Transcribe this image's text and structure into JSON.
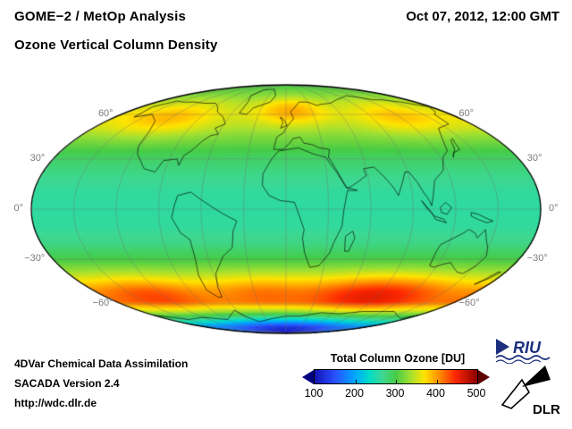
{
  "header": {
    "title_line1": "GOME−2 / MetOp Analysis",
    "title_line2": "Ozone Vertical Column Density",
    "datetime": "Oct 07, 2012, 12:00 GMT"
  },
  "footer": {
    "line1": "4DVar Chemical Data Assimilation",
    "line2": "SACADA Version 2.4",
    "line3": "http://wdc.dlr.de"
  },
  "map": {
    "lat_labels": [
      {
        "lat": 60,
        "label": "60°"
      },
      {
        "lat": 30,
        "label": "30°"
      },
      {
        "lat": 0,
        "label": "0°"
      },
      {
        "lat": -30,
        "label": "−30°"
      },
      {
        "lat": -60,
        "label": "−60°"
      }
    ]
  },
  "colorbar": {
    "title": "Total Column Ozone [DU]",
    "min": 100,
    "max": 500,
    "ticks": [
      {
        "value": 100,
        "label": "100"
      },
      {
        "value": 200,
        "label": "200"
      },
      {
        "value": 300,
        "label": "300"
      },
      {
        "value": 400,
        "label": "400"
      },
      {
        "value": 500,
        "label": "500"
      }
    ],
    "left_arrow_color": "#000080",
    "right_arrow_color": "#5f0000"
  },
  "logos": {
    "riu_text": "RIU",
    "riu_color": "#1b2f7d",
    "dlr_text": "DLR",
    "dlr_color": "#000000"
  },
  "chart_data": {
    "type": "heatmap",
    "title": "GOME−2 / MetOp Analysis — Ozone Vertical Column Density",
    "timestamp": "Oct 07, 2012, 12:00 GMT",
    "units": "DU",
    "projection": "mollweide",
    "value_range": [
      100,
      500
    ],
    "graticule_deg": 30,
    "colorbar": {
      "stops": [
        {
          "value": 100,
          "color": "#1414b4"
        },
        {
          "value": 150,
          "color": "#2850ff"
        },
        {
          "value": 200,
          "color": "#00a8ff"
        },
        {
          "value": 235,
          "color": "#00ddc8"
        },
        {
          "value": 265,
          "color": "#3cd894"
        },
        {
          "value": 300,
          "color": "#46cc46"
        },
        {
          "value": 335,
          "color": "#a0e032"
        },
        {
          "value": 370,
          "color": "#ffe400"
        },
        {
          "value": 405,
          "color": "#ff9000"
        },
        {
          "value": 445,
          "color": "#ff2800"
        },
        {
          "value": 500,
          "color": "#8c0000"
        }
      ]
    },
    "zonal_profile": {
      "lats": [
        -90,
        -80,
        -72,
        -65,
        -58,
        -50,
        -40,
        -30,
        -20,
        -10,
        0,
        10,
        20,
        30,
        40,
        50,
        60,
        70,
        80,
        90
      ],
      "values": [
        170,
        200,
        280,
        350,
        400,
        380,
        340,
        300,
        272,
        260,
        258,
        260,
        268,
        285,
        310,
        330,
        340,
        335,
        315,
        300
      ]
    },
    "anomalies": [
      {
        "name": "antarctic-ozone-hole",
        "lat": -82,
        "lon": 0,
        "amplitude": -75,
        "sigma_lat": 10,
        "sigma_lon": 85
      },
      {
        "name": "south-indian-ocean-high",
        "lat": -52,
        "lon": 85,
        "amplitude": 70,
        "sigma_lat": 9,
        "sigma_lon": 45
      },
      {
        "name": "south-pacific-high",
        "lat": -52,
        "lon": -130,
        "amplitude": 45,
        "sigma_lat": 8,
        "sigma_lon": 35
      },
      {
        "name": "south-atlantic-high",
        "lat": -50,
        "lon": -25,
        "amplitude": 30,
        "sigma_lat": 8,
        "sigma_lon": 30
      },
      {
        "name": "north-europe-high",
        "lat": 63,
        "lon": 5,
        "amplitude": 55,
        "sigma_lat": 8,
        "sigma_lon": 30
      },
      {
        "name": "east-siberia-high",
        "lat": 58,
        "lon": 118,
        "amplitude": 45,
        "sigma_lat": 9,
        "sigma_lon": 35
      },
      {
        "name": "north-pacific-america-high",
        "lat": 57,
        "lon": -125,
        "amplitude": 50,
        "sigma_lat": 9,
        "sigma_lon": 40
      }
    ],
    "coastlines": [
      [
        [
          -166,
          66
        ],
        [
          -160,
          58
        ],
        [
          -146,
          60
        ],
        [
          -131,
          55
        ],
        [
          -124,
          48
        ],
        [
          -121,
          38
        ],
        [
          -117,
          33
        ],
        [
          -106,
          24
        ],
        [
          -97,
          22
        ],
        [
          -94,
          29
        ],
        [
          -84,
          30
        ],
        [
          -81,
          26
        ],
        [
          -80,
          32
        ],
        [
          -76,
          35
        ],
        [
          -70,
          42
        ],
        [
          -66,
          45
        ],
        [
          -60,
          46
        ],
        [
          -66,
          50
        ],
        [
          -59,
          53
        ],
        [
          -66,
          58
        ],
        [
          -78,
          62
        ],
        [
          -85,
          66
        ],
        [
          -95,
          69
        ],
        [
          -110,
          69
        ],
        [
          -128,
          70
        ],
        [
          -145,
          70
        ],
        [
          -156,
          71
        ],
        [
          -166,
          66
        ]
      ],
      [
        [
          -52,
          61
        ],
        [
          -43,
          60
        ],
        [
          -40,
          65
        ],
        [
          -22,
          70
        ],
        [
          -18,
          76
        ],
        [
          -32,
          83
        ],
        [
          -55,
          82
        ],
        [
          -61,
          76
        ],
        [
          -53,
          70
        ],
        [
          -52,
          61
        ]
      ],
      [
        [
          -77,
          8
        ],
        [
          -79,
          2
        ],
        [
          -81,
          -5
        ],
        [
          -76,
          -14
        ],
        [
          -70,
          -18
        ],
        [
          -70,
          -30
        ],
        [
          -73,
          -40
        ],
        [
          -74,
          -50
        ],
        [
          -68,
          -55
        ],
        [
          -64,
          -55
        ],
        [
          -62,
          -48
        ],
        [
          -58,
          -39
        ],
        [
          -48,
          -28
        ],
        [
          -40,
          -23
        ],
        [
          -38,
          -13
        ],
        [
          -35,
          -7
        ],
        [
          -44,
          -3
        ],
        [
          -50,
          0
        ],
        [
          -61,
          6
        ],
        [
          -68,
          10
        ],
        [
          -77,
          8
        ]
      ],
      [
        [
          -6,
          35
        ],
        [
          -11,
          30
        ],
        [
          -17,
          21
        ],
        [
          -17,
          14
        ],
        [
          -12,
          8
        ],
        [
          -4,
          5
        ],
        [
          6,
          4
        ],
        [
          9,
          -3
        ],
        [
          13,
          -12
        ],
        [
          12,
          -17
        ],
        [
          14,
          -26
        ],
        [
          19,
          -35
        ],
        [
          26,
          -34
        ],
        [
          33,
          -26
        ],
        [
          35,
          -20
        ],
        [
          40,
          -10
        ],
        [
          41,
          0
        ],
        [
          44,
          11
        ],
        [
          51,
          11
        ],
        [
          43,
          13
        ],
        [
          38,
          21
        ],
        [
          33,
          28
        ],
        [
          31,
          31
        ],
        [
          22,
          33
        ],
        [
          10,
          37
        ],
        [
          -6,
          35
        ]
      ],
      [
        [
          -10,
          36
        ],
        [
          -8,
          44
        ],
        [
          -2,
          47
        ],
        [
          -1,
          49
        ],
        [
          3,
          53
        ],
        [
          8,
          57
        ],
        [
          5,
          62
        ],
        [
          10,
          65
        ],
        [
          18,
          70
        ],
        [
          30,
          70
        ],
        [
          40,
          67
        ],
        [
          45,
          68
        ],
        [
          60,
          69
        ],
        [
          75,
          72
        ],
        [
          90,
          74
        ],
        [
          105,
          76
        ],
        [
          130,
          72
        ],
        [
          142,
          72
        ],
        [
          160,
          70
        ],
        [
          178,
          66
        ],
        [
          170,
          62
        ],
        [
          162,
          60
        ],
        [
          158,
          53
        ],
        [
          142,
          50
        ],
        [
          135,
          44
        ],
        [
          129,
          35
        ],
        [
          122,
          31
        ],
        [
          117,
          23
        ],
        [
          108,
          17
        ],
        [
          105,
          9
        ],
        [
          103,
          2
        ],
        [
          101,
          6
        ],
        [
          98,
          10
        ],
        [
          95,
          16
        ],
        [
          91,
          22
        ],
        [
          88,
          22
        ],
        [
          85,
          17
        ],
        [
          80,
          8
        ],
        [
          77,
          13
        ],
        [
          72,
          19
        ],
        [
          66,
          25
        ],
        [
          58,
          24
        ],
        [
          59,
          20
        ],
        [
          52,
          16
        ],
        [
          44,
          12
        ],
        [
          35,
          28
        ],
        [
          33,
          31
        ],
        [
          35,
          36
        ],
        [
          27,
          37
        ],
        [
          22,
          39
        ],
        [
          15,
          40
        ],
        [
          12,
          44
        ],
        [
          6,
          43
        ],
        [
          3,
          40
        ],
        [
          -2,
          36
        ],
        [
          -10,
          36
        ]
      ],
      [
        [
          114,
          -34
        ],
        [
          113,
          -25
        ],
        [
          114,
          -21
        ],
        [
          122,
          -17
        ],
        [
          128,
          -14
        ],
        [
          131,
          -12
        ],
        [
          136,
          -14
        ],
        [
          139,
          -17
        ],
        [
          143,
          -12
        ],
        [
          146,
          -18
        ],
        [
          150,
          -23
        ],
        [
          153,
          -28
        ],
        [
          151,
          -34
        ],
        [
          146,
          -39
        ],
        [
          140,
          -38
        ],
        [
          134,
          -35
        ],
        [
          129,
          -32
        ],
        [
          124,
          -33
        ],
        [
          118,
          -35
        ],
        [
          114,
          -34
        ]
      ],
      [
        [
          -180,
          -69
        ],
        [
          -150,
          -73
        ],
        [
          -120,
          -71
        ],
        [
          -90,
          -73
        ],
        [
          -63,
          -65
        ],
        [
          -57,
          -70
        ],
        [
          -45,
          -75
        ],
        [
          -20,
          -72
        ],
        [
          0,
          -70
        ],
        [
          20,
          -70
        ],
        [
          45,
          -67
        ],
        [
          70,
          -68
        ],
        [
          95,
          -66
        ],
        [
          115,
          -66
        ],
        [
          135,
          -66
        ],
        [
          150,
          -69
        ],
        [
          170,
          -72
        ],
        [
          180,
          -69
        ]
      ],
      [
        [
          -5,
          50
        ],
        [
          -3,
          54
        ],
        [
          -6,
          58
        ],
        [
          -2,
          56
        ],
        [
          1,
          52
        ],
        [
          -5,
          50
        ]
      ],
      [
        [
          130,
          31
        ],
        [
          133,
          34
        ],
        [
          137,
          35
        ],
        [
          140,
          36
        ],
        [
          141,
          40
        ],
        [
          143,
          43
        ],
        [
          140,
          42
        ],
        [
          136,
          36
        ],
        [
          131,
          32
        ],
        [
          130,
          31
        ]
      ],
      [
        [
          44,
          -25
        ],
        [
          43,
          -16
        ],
        [
          48,
          -13
        ],
        [
          50,
          -17
        ],
        [
          47,
          -25
        ],
        [
          44,
          -25
        ]
      ],
      [
        [
          167,
          -46
        ],
        [
          170,
          -43
        ],
        [
          174,
          -38
        ],
        [
          176,
          -38
        ],
        [
          173,
          -42
        ],
        [
          168,
          -46
        ],
        [
          167,
          -46
        ]
      ],
      [
        [
          109,
          1
        ],
        [
          113,
          4
        ],
        [
          117,
          1
        ],
        [
          114,
          -3
        ],
        [
          110,
          -2
        ],
        [
          109,
          1
        ]
      ],
      [
        [
          131,
          -2
        ],
        [
          136,
          -3
        ],
        [
          141,
          -5
        ],
        [
          147,
          -7
        ],
        [
          143,
          -8
        ],
        [
          136,
          -6
        ],
        [
          131,
          -4
        ],
        [
          131,
          -2
        ]
      ],
      [
        [
          96,
          5
        ],
        [
          99,
          2
        ],
        [
          103,
          -2
        ],
        [
          106,
          -6
        ],
        [
          110,
          -7
        ],
        [
          114,
          -8
        ],
        [
          112,
          -6
        ],
        [
          105,
          -4
        ],
        [
          100,
          0
        ],
        [
          96,
          5
        ]
      ]
    ]
  }
}
